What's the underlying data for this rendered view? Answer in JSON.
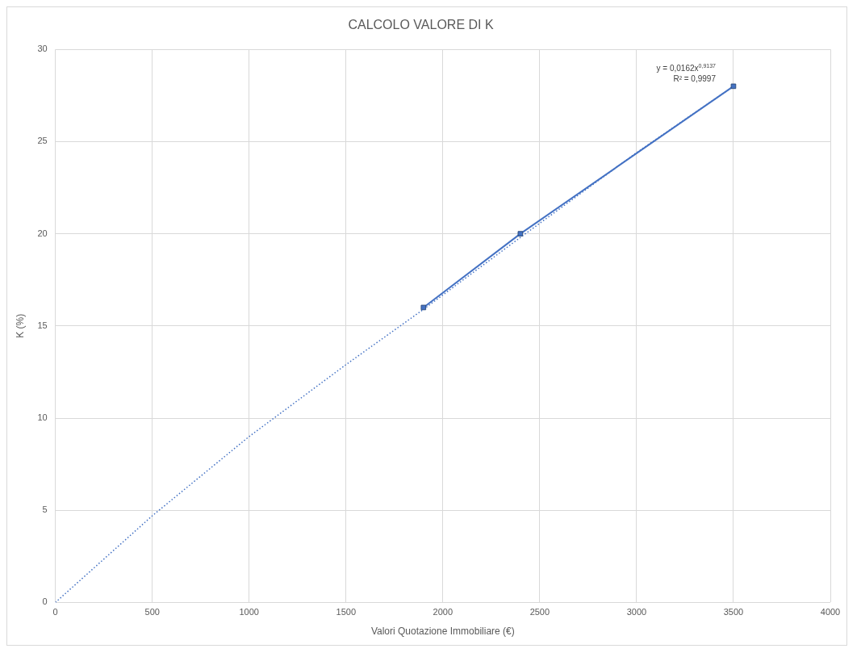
{
  "chart_data": {
    "type": "scatter",
    "title": "CALCOLO VALORE DI K",
    "xlabel": "Valori Quotazione Immobiliare (€)",
    "ylabel": "K (%)",
    "xlim": [
      0,
      4000
    ],
    "xticks": [
      0,
      500,
      1000,
      1500,
      2000,
      2500,
      3000,
      3500,
      4000
    ],
    "ylim": [
      0,
      30
    ],
    "yticks": [
      0,
      5,
      10,
      15,
      20,
      25,
      30
    ],
    "grid": true,
    "legend": false,
    "series": [
      {
        "type": "line",
        "color": "#4472c4",
        "x": [
          1900,
          2400,
          3500
        ],
        "values": [
          16,
          20,
          28
        ],
        "marker": "square",
        "line_style": "solid"
      },
      {
        "type": "line",
        "color": "#4472c4",
        "x": [
          0,
          500,
          1000,
          1500,
          1900,
          2400,
          3000,
          3500
        ],
        "values": [
          0,
          4.7,
          9.0,
          12.9,
          15.9,
          19.8,
          24.4,
          28
        ],
        "marker": "none",
        "line_style": "dotted"
      }
    ],
    "annotations": [
      "y = 0,0162x$^{0,9137}$",
      "R² = 0,9997"
    ]
  }
}
